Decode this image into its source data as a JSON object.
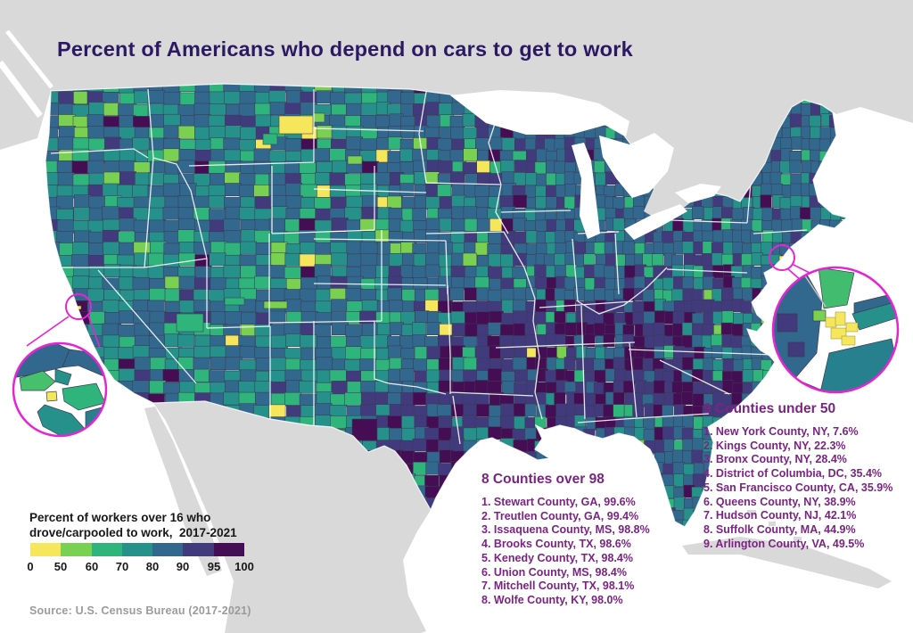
{
  "title": "Percent of Americans who depend on cars to get to work",
  "legend": {
    "label_line1": "Percent of workers over 16 who",
    "label_line2": "drove/carpooled to work,  2017-2021",
    "ticks": [
      "0",
      "50",
      "60",
      "70",
      "80",
      "90",
      "95",
      "100"
    ],
    "colors": [
      "#f6e65b",
      "#7ad151",
      "#2fb47c",
      "#26918b",
      "#32688e",
      "#413a7d",
      "#440d54"
    ]
  },
  "source": "Source: U.S. Census Bureau (2017-2021)",
  "lists": {
    "over98": {
      "heading": "8 Counties over 98",
      "items": [
        "1. Stewart County, GA, 99.6%",
        "2. Treutlen County, GA, 99.4%",
        "3. Issaquena County, MS, 98.8%",
        "4. Brooks County, TX, 98.6%",
        "5. Kenedy County, TX, 98.4%",
        "6. Union County, MS, 98.4%",
        "7. Mitchell County, TX, 98.1%",
        "8. Wolfe County, KY, 98.0%"
      ]
    },
    "under50": {
      "heading": "9 Counties under 50",
      "items": [
        "1. New York County, NY, 7.6%",
        "2. Kings County, NY, 22.3%",
        "3. Bronx County, NY, 28.4%",
        "4. District of Columbia, DC, 35.4%",
        "5. San Francisco County, CA, 35.9%",
        "6. Queens County, NY, 38.9%",
        "7. Hudson County, NJ, 42.1%",
        "8. Suffolk County, MA, 44.9%",
        "9. Arlington County, VA, 49.5%"
      ]
    }
  },
  "map": {
    "palette": {
      "yellow": "#f6e65b",
      "light_green": "#7ad151",
      "green": "#2fb47c",
      "teal": "#26918b",
      "blue": "#32688e",
      "indigo": "#413a7d",
      "dark_purple": "#440d54"
    },
    "land_gray": "#d9d9d9",
    "ocean_white": "#ffffff",
    "state_border": "#ffffff",
    "county_border": "#3b3b52",
    "inset_circle_color": "#e823d4",
    "title_color": "#2b1a63",
    "list_color": "#7b2483"
  }
}
